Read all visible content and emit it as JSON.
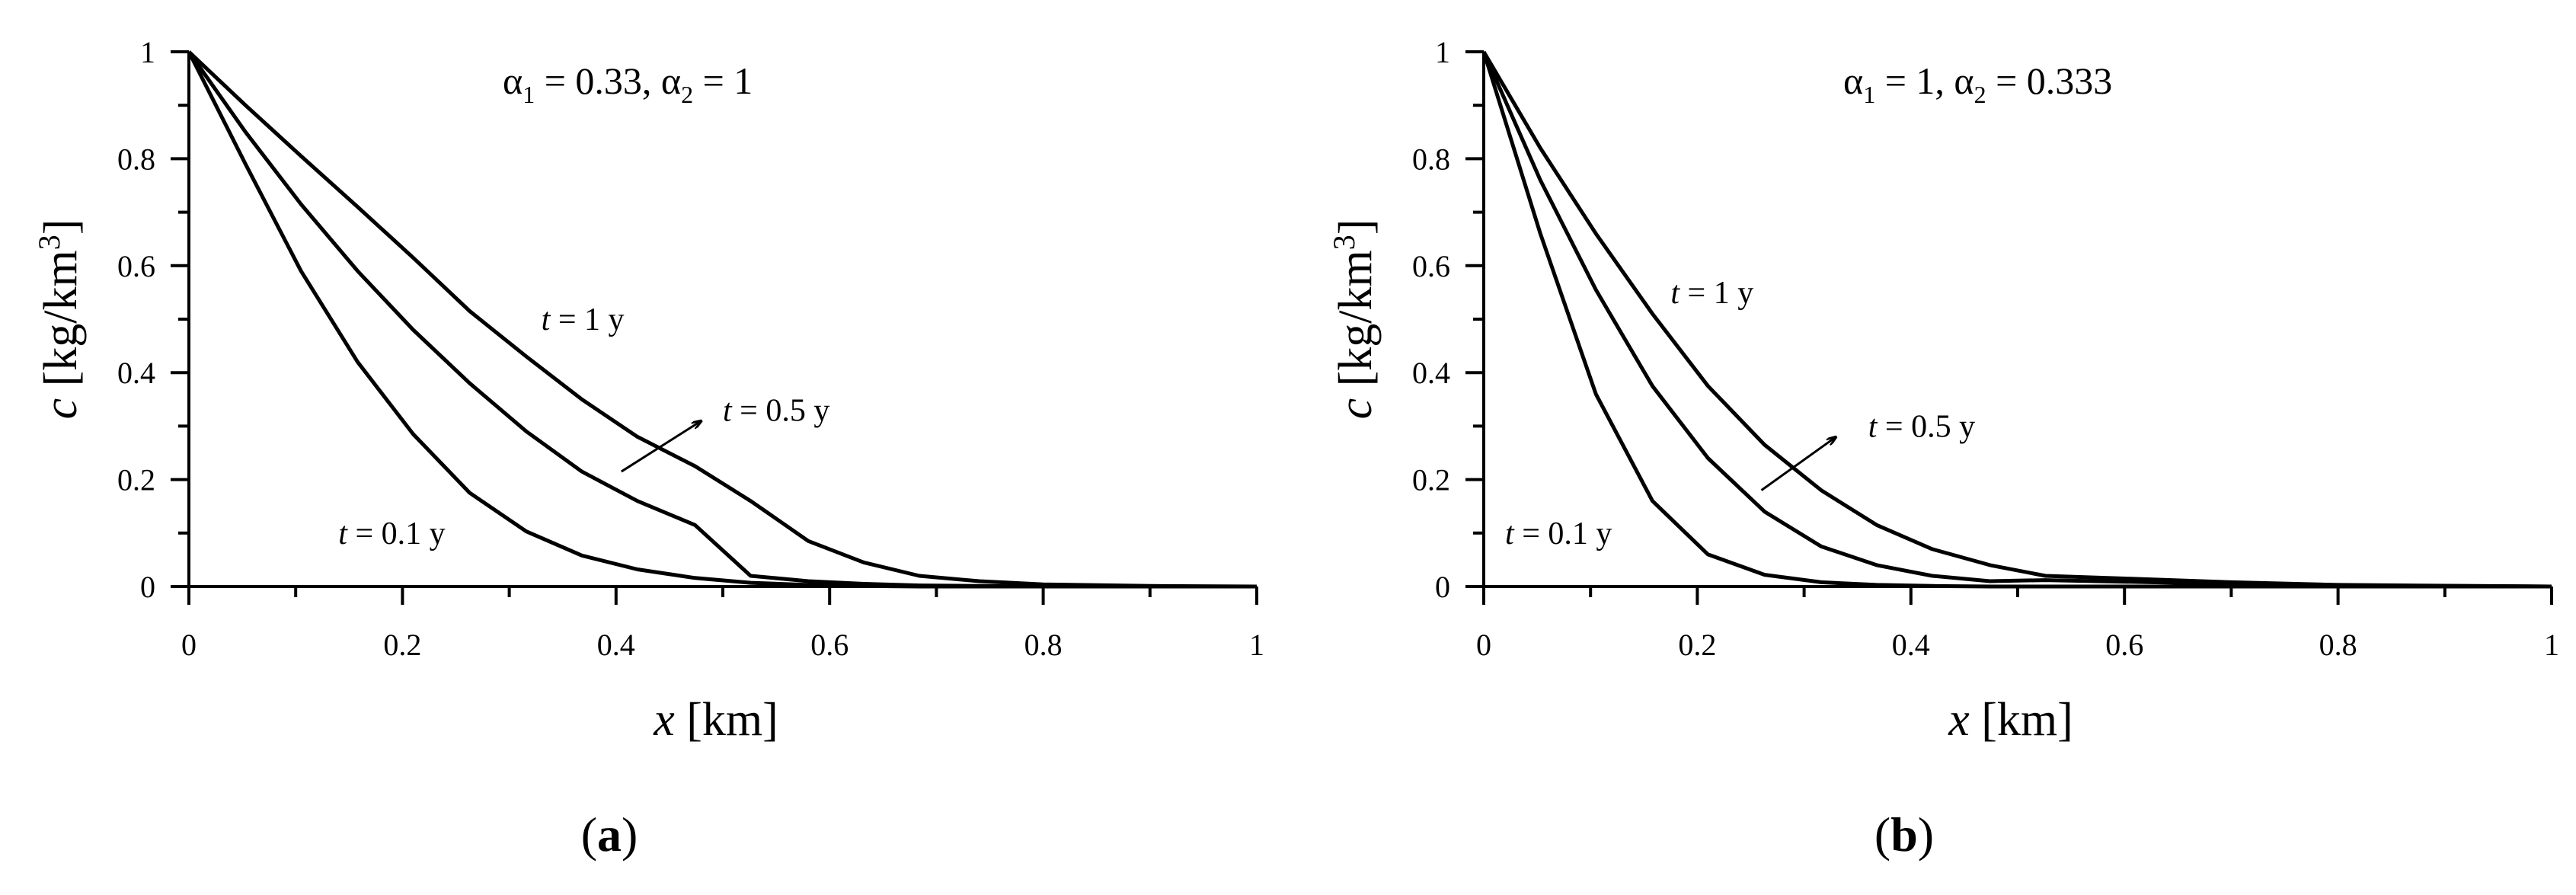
{
  "figure": {
    "panels": [
      {
        "panel_label": "(a)",
        "panel_label_letter": "a",
        "title_parts": [
          "α",
          "1",
          " = 0.33, ",
          "α",
          "2",
          " = 1"
        ],
        "xlabel_var": "x",
        "xlabel_unit": " [km]",
        "ylabel_var": "c",
        "ylabel_unit_pre": " [kg/km",
        "ylabel_unit_sup": "3",
        "ylabel_unit_post": "]",
        "arrow": {
          "from": [
            0.405,
            0.215
          ],
          "to": [
            0.48,
            0.31
          ]
        }
      },
      {
        "panel_label": "(b)",
        "panel_label_letter": "b",
        "title_parts": [
          "α",
          "1",
          " = 1, ",
          "α",
          "2",
          " = 0.333"
        ],
        "xlabel_var": "x",
        "xlabel_unit": " [km]",
        "ylabel_var": "c",
        "ylabel_unit_pre": " [kg/km",
        "ylabel_unit_sup": "3",
        "ylabel_unit_post": "]",
        "arrow": {
          "from": [
            0.26,
            0.18
          ],
          "to": [
            0.33,
            0.28
          ]
        }
      }
    ]
  },
  "chart_data": [
    {
      "type": "line",
      "title": "α1 = 0.33, α2 = 1",
      "xlabel": "x [km]",
      "ylabel": "c [kg/km3]",
      "xlim": [
        0,
        1
      ],
      "ylim": [
        0,
        1
      ],
      "xticks": [
        "0",
        "0.2",
        "0.4",
        "0.6",
        "0.8",
        "1"
      ],
      "yticks": [
        "0",
        "0.2",
        "0.4",
        "0.6",
        "0.8",
        "1"
      ],
      "grid": false,
      "annotations": [
        {
          "text_var": "t",
          "text_rest": " = 1 y",
          "x": 0.33,
          "y": 0.48
        },
        {
          "text_var": "t",
          "text_rest": " = 0.5 y",
          "x": 0.5,
          "y": 0.31
        },
        {
          "text_var": "t",
          "text_rest": " = 0.1 y",
          "x": 0.14,
          "y": 0.08
        }
      ],
      "series": [
        {
          "label": "t = 0.1 y",
          "x": [
            0,
            0.053,
            0.105,
            0.158,
            0.21,
            0.263,
            0.316,
            0.368,
            0.42,
            0.474,
            0.526,
            0.58,
            0.632,
            0.684,
            0.74,
            0.8,
            0.9,
            1.0
          ],
          "y": [
            1,
            0.79,
            0.59,
            0.42,
            0.285,
            0.175,
            0.103,
            0.058,
            0.032,
            0.016,
            0.007,
            0.003,
            0.001,
            0,
            0,
            0,
            0,
            0
          ]
        },
        {
          "label": "t = 0.5 y",
          "x": [
            0,
            0.053,
            0.105,
            0.158,
            0.21,
            0.263,
            0.316,
            0.368,
            0.42,
            0.474,
            0.526,
            0.58,
            0.632,
            0.684,
            0.74,
            0.8,
            0.9,
            1.0
          ],
          "y": [
            1,
            0.85,
            0.715,
            0.59,
            0.48,
            0.38,
            0.29,
            0.215,
            0.16,
            0.115,
            0.02,
            0.01,
            0.005,
            0.002,
            0.001,
            0,
            0,
            0
          ]
        },
        {
          "label": "t = 1 y",
          "x": [
            0,
            0.053,
            0.105,
            0.158,
            0.21,
            0.263,
            0.316,
            0.368,
            0.42,
            0.474,
            0.526,
            0.58,
            0.632,
            0.684,
            0.74,
            0.8,
            0.9,
            1.0
          ],
          "y": [
            1,
            0.9,
            0.805,
            0.71,
            0.615,
            0.515,
            0.43,
            0.35,
            0.28,
            0.225,
            0.16,
            0.085,
            0.045,
            0.02,
            0.01,
            0.004,
            0.001,
            0
          ]
        }
      ]
    },
    {
      "type": "line",
      "title": "α1 = 1, α2 = 0.333",
      "xlabel": "x [km]",
      "ylabel": "c [kg/km3]",
      "xlim": [
        0,
        1
      ],
      "ylim": [
        0,
        1
      ],
      "xticks": [
        "0",
        "0.2",
        "0.4",
        "0.6",
        "0.8",
        "1"
      ],
      "yticks": [
        "0",
        "0.2",
        "0.4",
        "0.6",
        "0.8",
        "1"
      ],
      "grid": false,
      "annotations": [
        {
          "text_var": "t",
          "text_rest": " = 1 y",
          "x": 0.175,
          "y": 0.53
        },
        {
          "text_var": "t",
          "text_rest": " = 0.5 y",
          "x": 0.36,
          "y": 0.28
        },
        {
          "text_var": "t",
          "text_rest": " = 0.1 y",
          "x": 0.02,
          "y": 0.08
        }
      ],
      "series": [
        {
          "label": "t = 0.1 y",
          "x": [
            0,
            0.053,
            0.105,
            0.158,
            0.21,
            0.263,
            0.316,
            0.368,
            0.42,
            0.474,
            0.526,
            0.6,
            0.7,
            0.8,
            1.0
          ],
          "y": [
            1,
            0.66,
            0.36,
            0.16,
            0.06,
            0.022,
            0.008,
            0.003,
            0.001,
            0,
            0,
            0,
            0,
            0,
            0
          ]
        },
        {
          "label": "t = 0.5 y",
          "x": [
            0,
            0.053,
            0.105,
            0.158,
            0.21,
            0.263,
            0.316,
            0.368,
            0.42,
            0.474,
            0.526,
            0.6,
            0.7,
            0.8,
            1.0
          ],
          "y": [
            1,
            0.76,
            0.555,
            0.375,
            0.24,
            0.14,
            0.075,
            0.04,
            0.02,
            0.01,
            0.012,
            0.009,
            0.005,
            0.002,
            0
          ]
        },
        {
          "label": "t = 1 y",
          "x": [
            0,
            0.053,
            0.105,
            0.158,
            0.21,
            0.263,
            0.316,
            0.368,
            0.42,
            0.474,
            0.526,
            0.6,
            0.7,
            0.8,
            1.0
          ],
          "y": [
            1,
            0.82,
            0.66,
            0.51,
            0.375,
            0.265,
            0.18,
            0.115,
            0.07,
            0.04,
            0.02,
            0.015,
            0.008,
            0.003,
            0
          ]
        }
      ]
    }
  ]
}
